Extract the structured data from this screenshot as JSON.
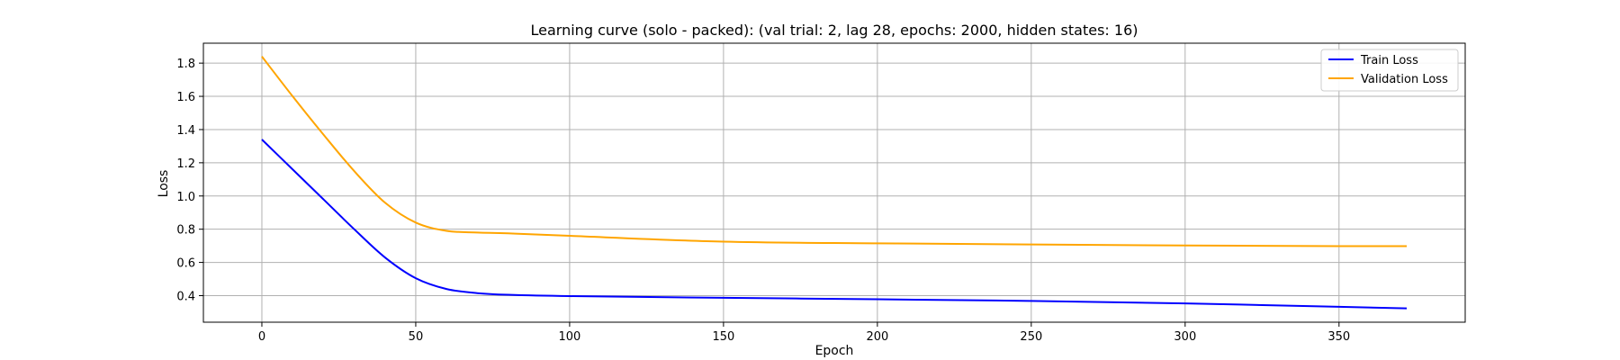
{
  "chart_data": {
    "type": "line",
    "title": "Learning curve (solo - packed): (val trial: 2, lag 28, epochs: 2000, hidden states: 16)",
    "xlabel": "Epoch",
    "ylabel": "Loss",
    "xlim": [
      -19,
      391
    ],
    "ylim": [
      0.24,
      1.92
    ],
    "xticks": [
      0,
      50,
      100,
      150,
      200,
      250,
      300,
      350
    ],
    "yticks": [
      0.4,
      0.6,
      0.8,
      1.0,
      1.2,
      1.4,
      1.6,
      1.8
    ],
    "xtick_labels": [
      "0",
      "50",
      "100",
      "150",
      "200",
      "250",
      "300",
      "350"
    ],
    "ytick_labels": [
      "0.4",
      "0.6",
      "0.8",
      "1.0",
      "1.2",
      "1.4",
      "1.6",
      "1.8"
    ],
    "grid": true,
    "legend_position": "top-right",
    "series": [
      {
        "name": "Train Loss",
        "color": "#0000ff",
        "x": [
          0,
          10,
          20,
          30,
          40,
          50,
          60,
          70,
          80,
          100,
          150,
          200,
          250,
          300,
          350,
          372
        ],
        "y": [
          1.34,
          1.16,
          0.98,
          0.8,
          0.63,
          0.505,
          0.44,
          0.415,
          0.405,
          0.397,
          0.387,
          0.378,
          0.368,
          0.353,
          0.333,
          0.323
        ]
      },
      {
        "name": "Validation Loss",
        "color": "#ffa500",
        "x": [
          0,
          10,
          20,
          30,
          40,
          50,
          60,
          70,
          80,
          100,
          150,
          200,
          250,
          300,
          350,
          372
        ],
        "y": [
          1.84,
          1.6,
          1.37,
          1.15,
          0.96,
          0.84,
          0.79,
          0.78,
          0.775,
          0.76,
          0.725,
          0.715,
          0.708,
          0.702,
          0.698,
          0.698
        ]
      }
    ]
  }
}
